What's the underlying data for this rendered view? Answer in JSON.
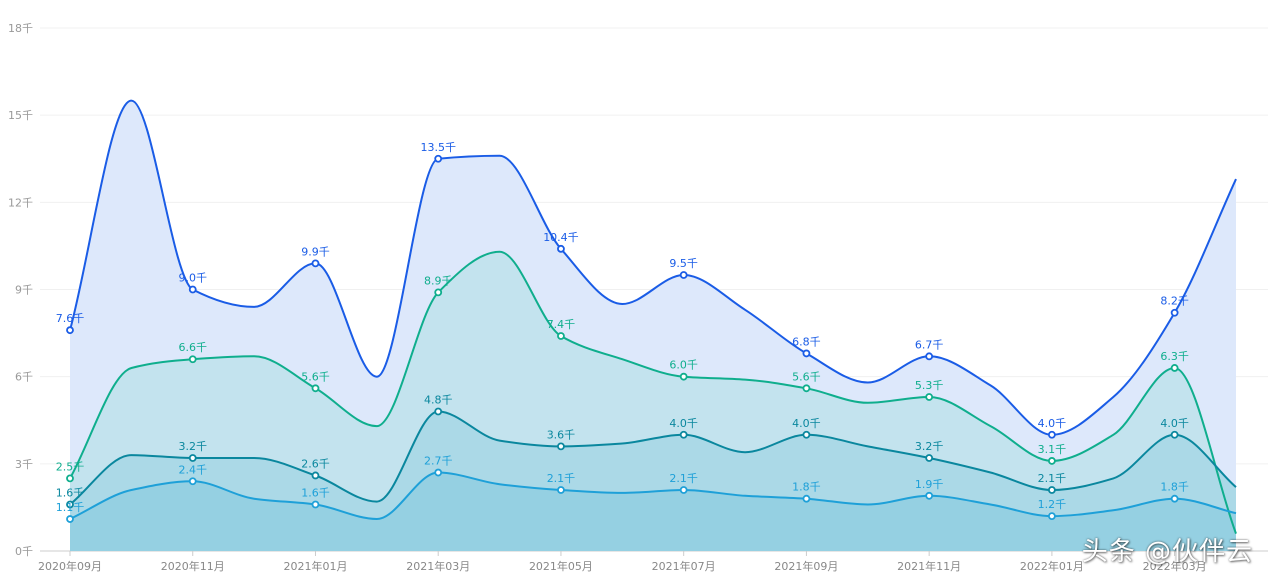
{
  "chart_data": {
    "type": "area",
    "x": [
      "2020-09",
      "2020-10",
      "2020-11",
      "2020-12",
      "2021-01",
      "2021-02",
      "2021-03",
      "2021-04",
      "2021-05",
      "2021-06",
      "2021-07",
      "2021-08",
      "2021-09",
      "2021-10",
      "2021-11",
      "2021-12",
      "2022-01",
      "2022-02",
      "2022-03",
      "2022-04"
    ],
    "tick_labels": [
      "2020年09月",
      "2020年11月",
      "2021年01月",
      "2021年03月",
      "2021年05月",
      "2021年07月",
      "2021年09月",
      "2021年11月",
      "2022年01月",
      "2022年03月"
    ],
    "y_ticks": [
      "0千",
      "3千",
      "6千",
      "9千",
      "12千",
      "15千",
      "18千"
    ],
    "ylim": [
      0,
      18
    ],
    "grid": true,
    "series": [
      {
        "color": "#1a5ce6",
        "fill": "#dde8fb",
        "values": [
          7.6,
          15.5,
          9.0,
          8.4,
          9.9,
          6.0,
          13.5,
          13.6,
          10.4,
          8.5,
          9.5,
          8.3,
          6.8,
          5.8,
          6.7,
          5.7,
          4.0,
          5.3,
          8.2,
          12.8
        ],
        "labels": [
          "7.6千",
          "",
          "9.0千",
          "",
          "9.9千",
          "",
          "13.5千",
          "",
          "10.4千",
          "",
          "9.5千",
          "",
          "6.8千",
          "",
          "6.7千",
          "",
          "4.0千",
          "",
          "8.2千",
          ""
        ]
      },
      {
        "color": "#0fae8d",
        "fill": "#c3e3ee",
        "values": [
          2.5,
          6.3,
          6.6,
          6.7,
          5.6,
          4.3,
          8.9,
          10.3,
          7.4,
          6.6,
          6.0,
          5.9,
          5.6,
          5.1,
          5.3,
          4.3,
          3.1,
          4.0,
          6.3,
          0.6
        ],
        "labels": [
          "2.5千",
          "",
          "6.6千",
          "",
          "5.6千",
          "",
          "8.9千",
          "",
          "7.4千",
          "",
          "6.0千",
          "",
          "5.6千",
          "",
          "5.3千",
          "",
          "3.1千",
          "",
          "6.3千",
          ""
        ]
      },
      {
        "color": "#0a879e",
        "fill": "#abd9e7",
        "values": [
          1.6,
          3.3,
          3.2,
          3.2,
          2.6,
          1.7,
          4.8,
          3.8,
          3.6,
          3.7,
          4.0,
          3.4,
          4.0,
          3.6,
          3.2,
          2.7,
          2.1,
          2.5,
          4.0,
          2.2
        ],
        "labels": [
          "1.6千",
          "",
          "3.2千",
          "",
          "2.6千",
          "",
          "4.8千",
          "",
          "3.6千",
          "",
          "4.0千",
          "",
          "4.0千",
          "",
          "3.2千",
          "",
          "2.1千",
          "",
          "4.0千",
          ""
        ]
      },
      {
        "color": "#1ea0d8",
        "fill": "#95d0e2",
        "values": [
          1.1,
          2.1,
          2.4,
          1.8,
          1.6,
          1.1,
          2.7,
          2.3,
          2.1,
          2.0,
          2.1,
          1.9,
          1.8,
          1.6,
          1.9,
          1.6,
          1.2,
          1.4,
          1.8,
          1.3
        ],
        "labels": [
          "1.1千",
          "",
          "2.4千",
          "",
          "1.6千",
          "",
          "2.7千",
          "",
          "2.1千",
          "",
          "2.1千",
          "",
          "1.8千",
          "",
          "1.9千",
          "",
          "1.2千",
          "",
          "1.8千",
          ""
        ]
      }
    ]
  },
  "watermark": "头条 @伙伴云"
}
